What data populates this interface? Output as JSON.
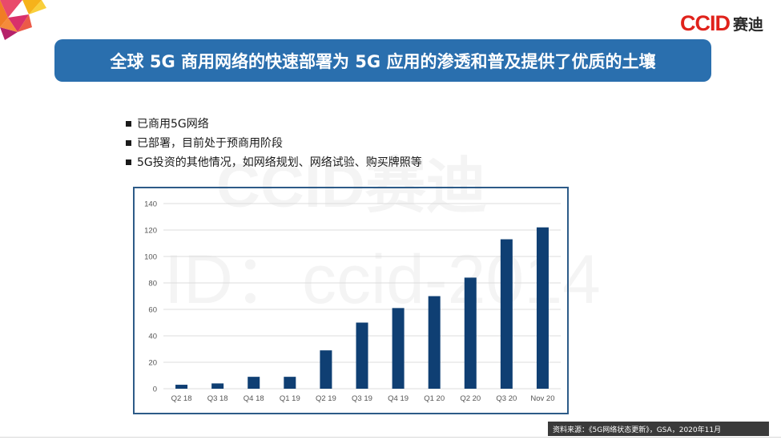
{
  "logo": {
    "brand": "CCID",
    "brand_cn": "赛迪"
  },
  "title": "全球 5G 商用网络的快速部署为 5G 应用的渗透和普及提供了优质的土壤",
  "bullets": [
    "已商用5G网络",
    "已部署，目前处于预商用阶段",
    "5G投资的其他情况，如网络规划、网络试验、购买牌照等"
  ],
  "watermark": {
    "line1": "CCID赛迪",
    "line2": "ID：ccid-2014"
  },
  "source": "资料来源：《5G网络状态更新》，GSA，2020年11月",
  "colors": {
    "banner": "#2a6fae",
    "bar": "#0f3f73",
    "logo_red": "#e0221b"
  },
  "chart_data": {
    "type": "bar",
    "categories": [
      "Q2 18",
      "Q3 18",
      "Q4 18",
      "Q1 19",
      "Q2 19",
      "Q3 19",
      "Q4 19",
      "Q1 20",
      "Q2 20",
      "Q3 20",
      "Nov 20"
    ],
    "values": [
      3,
      4,
      9,
      9,
      29,
      50,
      61,
      70,
      84,
      113,
      122
    ],
    "ylim": [
      0,
      140
    ],
    "yticks": [
      0,
      20,
      40,
      60,
      80,
      100,
      120,
      140
    ],
    "grid": true
  }
}
